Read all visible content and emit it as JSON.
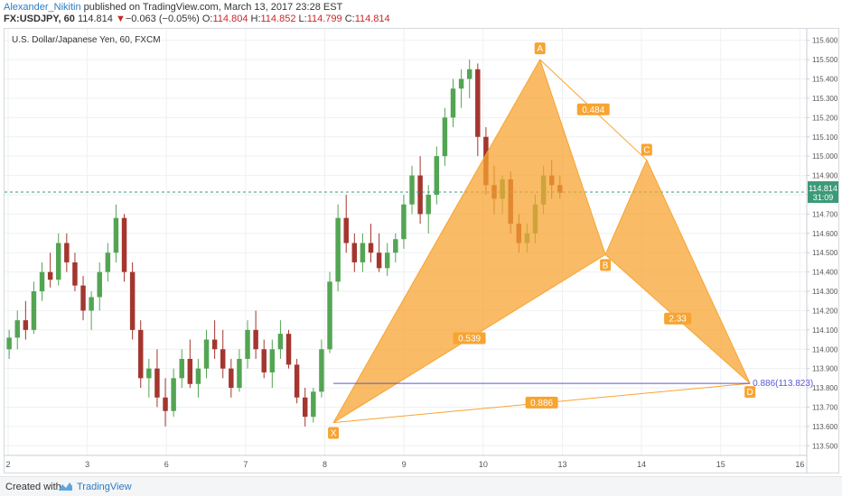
{
  "header": {
    "author": "Alexander_Nikitin",
    "published_text": "published on TradingView.com, March 13, 2017 23:28 EST",
    "symbol_interval": "FX:USDJPY, 60",
    "last_price": "114.814",
    "change": "−0.063 (−0.05%)",
    "open_label": "O:",
    "open": "114.804",
    "high_label": "H:",
    "high": "114.852",
    "low_label": "L:",
    "low": "114.799",
    "close_label": "C:",
    "close": "114.814"
  },
  "footer": {
    "created_with": "Created with",
    "brand": "TradingView"
  },
  "colors": {
    "up": "#53a553",
    "down": "#a4362f",
    "pattern": "#f7a432",
    "level": "#5b57d6",
    "price_line": "#3d9a78",
    "axis_text": "#555555"
  },
  "chart_data": {
    "type": "candlestick",
    "title": "U.S. Dollar/Japanese Yen, 60, FXCM",
    "ylim": [
      113.45,
      115.65
    ],
    "y_ticks": [
      113.5,
      113.6,
      113.7,
      113.8,
      113.9,
      114.0,
      114.1,
      114.2,
      114.3,
      114.4,
      114.5,
      114.6,
      114.7,
      114.8,
      114.9,
      115.0,
      115.1,
      115.2,
      115.3,
      115.4,
      115.5,
      115.6
    ],
    "y_tick_labels": [
      "113.500",
      "113.600",
      "113.700",
      "113.800",
      "113.900",
      "114.000",
      "114.100",
      "114.200",
      "114.300",
      "114.400",
      "114.500",
      "114.600",
      "114.700",
      "114.800",
      "114.900",
      "115.000",
      "115.100",
      "115.200",
      "115.300",
      "115.400",
      "115.500",
      "115.600"
    ],
    "x_ticks": [
      {
        "label": "2",
        "x": 0
      },
      {
        "label": "3",
        "x": 23
      },
      {
        "label": "6",
        "x": 46
      },
      {
        "label": "7",
        "x": 69
      },
      {
        "label": "8",
        "x": 92
      },
      {
        "label": "9",
        "x": 115
      },
      {
        "label": "10",
        "x": 138
      },
      {
        "label": "13",
        "x": 161
      },
      {
        "label": "14",
        "x": 184
      },
      {
        "label": "15",
        "x": 207
      },
      {
        "label": "16",
        "x": 230
      }
    ],
    "xlim": [
      0,
      232
    ],
    "current_price": 114.814,
    "current_price_label": "114.814",
    "countdown_label": "31:09",
    "price_line_value": 114.814,
    "candles": [
      [
        114.0,
        114.1,
        113.95,
        114.06
      ],
      [
        114.06,
        114.2,
        114.0,
        114.15
      ],
      [
        114.15,
        114.25,
        114.05,
        114.1
      ],
      [
        114.1,
        114.35,
        114.08,
        114.3
      ],
      [
        114.3,
        114.45,
        114.25,
        114.4
      ],
      [
        114.4,
        114.5,
        114.32,
        114.36
      ],
      [
        114.36,
        114.6,
        114.33,
        114.55
      ],
      [
        114.55,
        114.6,
        114.4,
        114.45
      ],
      [
        114.45,
        114.5,
        114.3,
        114.33
      ],
      [
        114.33,
        114.38,
        114.15,
        114.2
      ],
      [
        114.2,
        114.3,
        114.1,
        114.27
      ],
      [
        114.27,
        114.45,
        114.2,
        114.4
      ],
      [
        114.4,
        114.55,
        114.35,
        114.5
      ],
      [
        114.5,
        114.75,
        114.45,
        114.68
      ],
      [
        114.68,
        114.7,
        114.35,
        114.4
      ],
      [
        114.4,
        114.45,
        114.05,
        114.1
      ],
      [
        114.1,
        114.15,
        113.8,
        113.85
      ],
      [
        113.85,
        113.95,
        113.75,
        113.9
      ],
      [
        113.9,
        114.0,
        113.7,
        113.75
      ],
      [
        113.75,
        113.85,
        113.6,
        113.68
      ],
      [
        113.68,
        113.9,
        113.65,
        113.85
      ],
      [
        113.85,
        114.0,
        113.8,
        113.95
      ],
      [
        113.95,
        114.05,
        113.8,
        113.82
      ],
      [
        113.82,
        113.95,
        113.75,
        113.9
      ],
      [
        113.9,
        114.1,
        113.85,
        114.05
      ],
      [
        114.05,
        114.15,
        113.95,
        114.0
      ],
      [
        114.0,
        114.1,
        113.85,
        113.9
      ],
      [
        113.9,
        113.95,
        113.75,
        113.8
      ],
      [
        113.8,
        114.0,
        113.78,
        113.95
      ],
      [
        113.95,
        114.15,
        113.9,
        114.1
      ],
      [
        114.1,
        114.2,
        113.95,
        114.0
      ],
      [
        114.0,
        114.05,
        113.85,
        113.88
      ],
      [
        113.88,
        114.05,
        113.8,
        114.0
      ],
      [
        114.0,
        114.15,
        113.95,
        114.08
      ],
      [
        114.08,
        114.1,
        113.9,
        113.92
      ],
      [
        113.92,
        113.95,
        113.72,
        113.75
      ],
      [
        113.75,
        113.8,
        113.6,
        113.65
      ],
      [
        113.65,
        113.8,
        113.62,
        113.78
      ],
      [
        113.78,
        114.05,
        113.75,
        114.0
      ],
      [
        114.0,
        114.4,
        113.98,
        114.35
      ],
      [
        114.35,
        114.75,
        114.3,
        114.68
      ],
      [
        114.68,
        114.8,
        114.5,
        114.55
      ],
      [
        114.55,
        114.6,
        114.4,
        114.45
      ],
      [
        114.45,
        114.6,
        114.4,
        114.55
      ],
      [
        114.55,
        114.65,
        114.45,
        114.5
      ],
      [
        114.5,
        114.6,
        114.4,
        114.42
      ],
      [
        114.42,
        114.55,
        114.38,
        114.5
      ],
      [
        114.5,
        114.6,
        114.45,
        114.57
      ],
      [
        114.57,
        114.8,
        114.52,
        114.75
      ],
      [
        114.75,
        114.95,
        114.7,
        114.9
      ],
      [
        114.9,
        115.0,
        114.65,
        114.7
      ],
      [
        114.7,
        114.85,
        114.6,
        114.8
      ],
      [
        114.8,
        115.05,
        114.75,
        115.0
      ],
      [
        115.0,
        115.25,
        114.95,
        115.2
      ],
      [
        115.2,
        115.4,
        115.15,
        115.35
      ],
      [
        115.35,
        115.45,
        115.25,
        115.4
      ],
      [
        115.4,
        115.5,
        115.3,
        115.45
      ],
      [
        115.45,
        115.48,
        115.0,
        115.1
      ],
      [
        115.1,
        115.15,
        114.8,
        114.85
      ],
      [
        114.85,
        114.95,
        114.7,
        114.78
      ],
      [
        114.78,
        114.9,
        114.7,
        114.88
      ],
      [
        114.88,
        114.92,
        114.6,
        114.65
      ],
      [
        114.65,
        114.7,
        114.5,
        114.55
      ],
      [
        114.55,
        114.65,
        114.5,
        114.6
      ],
      [
        114.6,
        114.8,
        114.55,
        114.75
      ],
      [
        114.75,
        114.95,
        114.7,
        114.9
      ],
      [
        114.9,
        114.98,
        114.78,
        114.85
      ],
      [
        114.85,
        114.9,
        114.78,
        114.81
      ]
    ],
    "pattern_points": {
      "X": {
        "x": 94.5,
        "y": 113.62
      },
      "A": {
        "x": 154.5,
        "y": 115.5
      },
      "B": {
        "x": 173.5,
        "y": 114.49
      },
      "C": {
        "x": 185.5,
        "y": 114.98
      },
      "D": {
        "x": 215.5,
        "y": 113.823
      }
    },
    "point_labels": [
      "X",
      "A",
      "B",
      "C",
      "D"
    ],
    "ratios": [
      {
        "label": "0.539",
        "at": "XB"
      },
      {
        "label": "0.484",
        "at": "AC"
      },
      {
        "label": "2.33",
        "at": "BD"
      },
      {
        "label": "0.886",
        "at": "XD"
      }
    ],
    "level": {
      "value": 113.823,
      "from_x": 94.5,
      "to_x": 215.5,
      "label": "0.886(113.823)"
    }
  }
}
